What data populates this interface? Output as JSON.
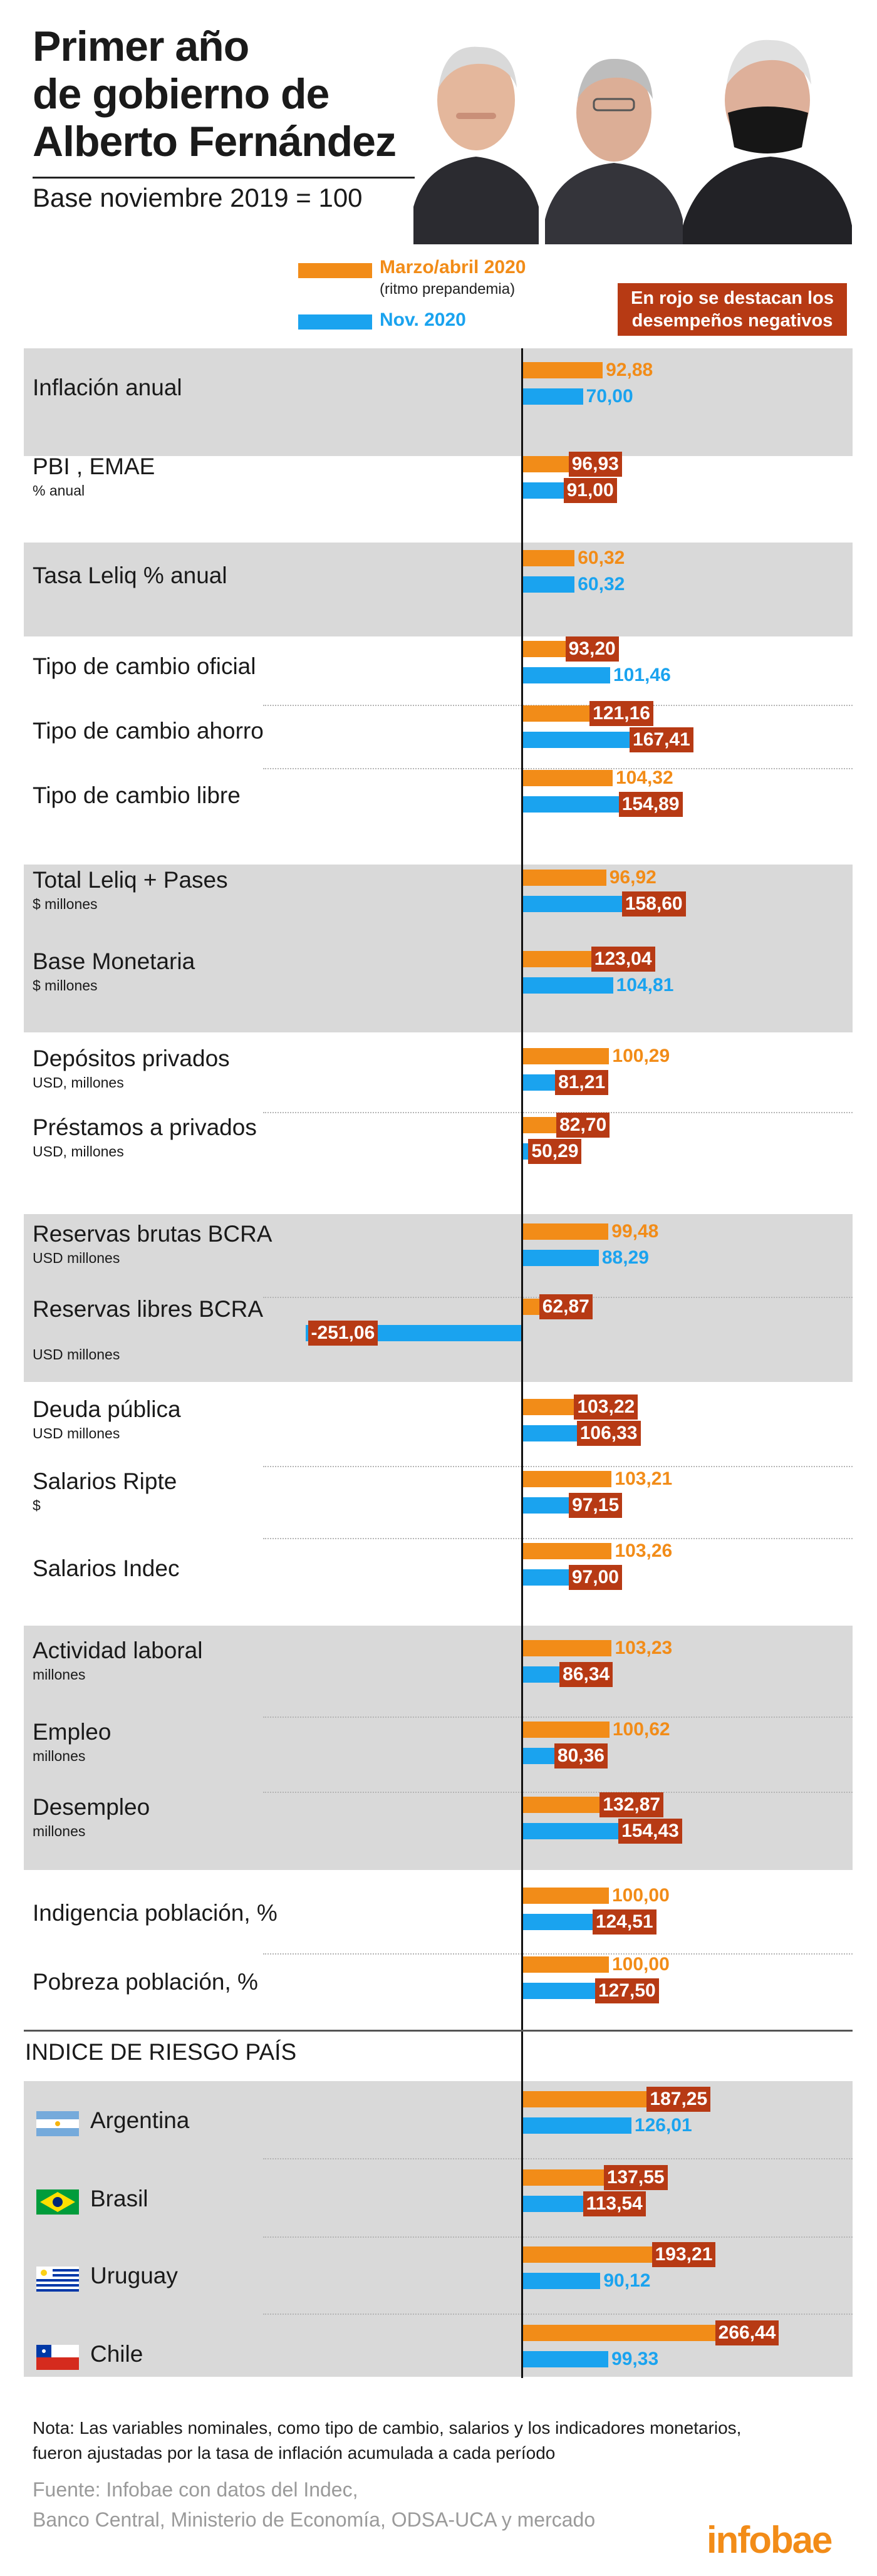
{
  "header": {
    "title_lines": [
      "Primer año",
      "de gobierno de",
      "Alberto Fernández"
    ],
    "subtitle": "Base noviembre 2019 = 100"
  },
  "legend": {
    "series1_label": "Marzo/abril 2020",
    "series1_sub": "(ritmo prepandemia)",
    "series2_label": "Nov. 2020",
    "note_lines": [
      "En rojo se destacan los",
      "desempeños negativos"
    ]
  },
  "colors": {
    "series1": "#f28c18",
    "series2": "#1aa3ef",
    "negative": "#b73a14",
    "band": "#d9d9d9"
  },
  "chart_data": {
    "type": "bar",
    "orientation": "horizontal",
    "series": [
      {
        "name": "Marzo/abril 2020",
        "note": "(ritmo prepandemia)"
      },
      {
        "name": "Nov. 2020"
      }
    ],
    "categories": [
      {
        "label": "Inflación anual",
        "unit": "",
        "values": [
          "92,88",
          "70,00"
        ],
        "negative": [
          false,
          false
        ]
      },
      {
        "label": "PBI , EMAE",
        "unit": "% anual",
        "values": [
          "96,93",
          "91,00"
        ],
        "negative": [
          true,
          true
        ]
      },
      {
        "label": "Tasa Leliq % anual",
        "unit": "",
        "values": [
          "60,32",
          "60,32"
        ],
        "negative": [
          false,
          false
        ]
      },
      {
        "label": "Tipo de cambio oficial",
        "unit": "",
        "values": [
          "93,20",
          "101,46"
        ],
        "negative": [
          true,
          false
        ]
      },
      {
        "label": "Tipo de cambio ahorro",
        "unit": "",
        "values": [
          "121,16",
          "167,41"
        ],
        "negative": [
          true,
          true
        ]
      },
      {
        "label": "Tipo de cambio libre",
        "unit": "",
        "values": [
          "104,32",
          "154,89"
        ],
        "negative": [
          false,
          true
        ]
      },
      {
        "label": "Total Leliq + Pases",
        "unit": "$ millones",
        "values": [
          "96,92",
          "158,60"
        ],
        "negative": [
          false,
          true
        ]
      },
      {
        "label": "Base Monetaria",
        "unit": "$ millones",
        "values": [
          "123,04",
          "104,81"
        ],
        "negative": [
          true,
          false
        ]
      },
      {
        "label": "Depósitos privados",
        "unit": "USD, millones",
        "values": [
          "100,29",
          "81,21"
        ],
        "negative": [
          false,
          true
        ]
      },
      {
        "label": "Préstamos a privados",
        "unit": "USD, millones",
        "values": [
          "82,70",
          "50,29"
        ],
        "negative": [
          true,
          true
        ]
      },
      {
        "label": "Reservas brutas BCRA",
        "unit": "USD millones",
        "values": [
          "99,48",
          "88,29"
        ],
        "negative": [
          false,
          false
        ]
      },
      {
        "label": "Reservas libres BCRA",
        "unit": "USD millones",
        "values": [
          "62,87",
          "-251,06"
        ],
        "negative": [
          true,
          true
        ]
      },
      {
        "label": "Deuda pública",
        "unit": "USD millones",
        "values": [
          "103,22",
          "106,33"
        ],
        "negative": [
          true,
          true
        ]
      },
      {
        "label": "Salarios Ripte",
        "unit": "$",
        "values": [
          "103,21",
          "97,15"
        ],
        "negative": [
          false,
          true
        ]
      },
      {
        "label": "Salarios Indec",
        "unit": "",
        "values": [
          "103,26",
          "97,00"
        ],
        "negative": [
          false,
          true
        ]
      },
      {
        "label": "Actividad laboral",
        "unit": "millones",
        "values": [
          "103,23",
          "86,34"
        ],
        "negative": [
          false,
          true
        ]
      },
      {
        "label": "Empleo",
        "unit": "millones",
        "values": [
          "100,62",
          "80,36"
        ],
        "negative": [
          false,
          true
        ]
      },
      {
        "label": "Desempleo",
        "unit": "millones",
        "values": [
          "132,87",
          "154,43"
        ],
        "negative": [
          true,
          true
        ]
      },
      {
        "label": "Indigencia población, %",
        "unit": "",
        "values": [
          "100,00",
          "124,51"
        ],
        "negative": [
          false,
          true
        ]
      },
      {
        "label": "Pobreza población, %",
        "unit": "",
        "values": [
          "100,00",
          "127,50"
        ],
        "negative": [
          false,
          true
        ]
      }
    ],
    "risk_section": {
      "title": "INDICE DE RIESGO PAÍS",
      "categories": [
        {
          "label": "Argentina",
          "flag": "argentina-flag-icon",
          "values": [
            "187,25",
            "126,01"
          ],
          "negative": [
            true,
            false
          ]
        },
        {
          "label": "Brasil",
          "flag": "brazil-flag-icon",
          "values": [
            "137,55",
            "113,54"
          ],
          "negative": [
            true,
            true
          ]
        },
        {
          "label": "Uruguay",
          "flag": "uruguay-flag-icon",
          "values": [
            "193,21",
            "90,12"
          ],
          "negative": [
            true,
            false
          ]
        },
        {
          "label": "Chile",
          "flag": "chile-flag-icon",
          "values": [
            "266,44",
            "99,33"
          ],
          "negative": [
            true,
            false
          ]
        }
      ]
    }
  },
  "footer": {
    "note_lines": [
      "Nota: Las variables nominales, como tipo de cambio, salarios y los indicadores monetarios,",
      "fueron ajustadas por la tasa de inflación acumulada a cada período"
    ],
    "source_lines": [
      "Fuente: Infobae con datos del Indec,",
      "Banco Central, Ministerio de Economía, ODSA-UCA y mercado"
    ],
    "logo": "infobae"
  }
}
